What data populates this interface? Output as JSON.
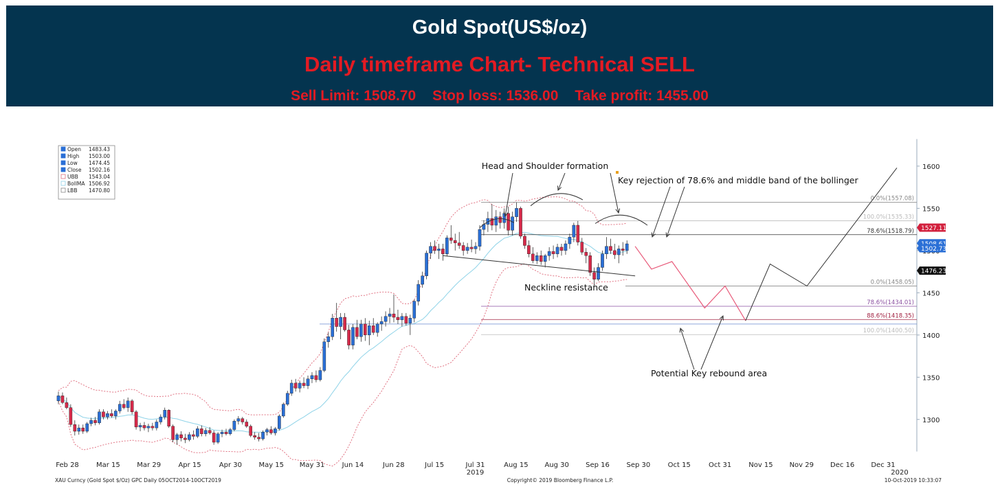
{
  "header": {
    "title": "Gold Spot(US$/oz)",
    "subtitle": "Daily timeframe Chart- Technical SELL",
    "sell_limit": "Sell Limit: 1508.70",
    "stop_loss": "Stop loss: 1536.00",
    "take_profit": "Take profit: 1455.00"
  },
  "colors": {
    "header_bg": "#04344f",
    "header_title": "#ffffff",
    "header_accent": "#e31b23",
    "bull_candle": "#2a6fd6",
    "bear_candle": "#d62a4a",
    "bollinger_band": "#e07080",
    "bollinger_mid": "#8fd3e8",
    "forecast_path": "#e85a7a"
  },
  "chart_data": {
    "type": "candlestick",
    "instrument": "XAU Curncy (Gold Spot  $/Oz) GPC  Daily 05OCT2014-10OCT2019",
    "copyright": "Copyright© 2019 Bloomberg Finance L.P.",
    "timestamp": "10-Oct-2019 10:33:07",
    "ylim": [
      1260,
      1630
    ],
    "y_ticks": [
      1300,
      1350,
      1400,
      1450,
      1500,
      1550,
      1600
    ],
    "x_ticks": [
      "Feb 28",
      "Mar 15",
      "Mar 29",
      "Apr 15",
      "Apr 30",
      "May 15",
      "May 31",
      "Jun 14",
      "Jun 28",
      "Jul 15",
      "Jul 31",
      "Aug 15",
      "Aug 30",
      "Sep 16",
      "Sep 30",
      "Oct 15",
      "Oct 31",
      "Nov 15",
      "Nov 29",
      "Dec 16",
      "Dec 31"
    ],
    "x_subticks": [
      {
        "tick": "Jul 31",
        "label": "2019"
      },
      {
        "tick": "Dec 31",
        "label": "2020"
      }
    ],
    "legend": [
      {
        "label": "Open",
        "value": "1483.43"
      },
      {
        "label": "High",
        "value": "1503.00"
      },
      {
        "label": "Low",
        "value": "1474.45"
      },
      {
        "label": "Close",
        "value": "1502.16"
      },
      {
        "label": "UBB",
        "value": "1543.04"
      },
      {
        "label": "BollMA",
        "value": "1506.92"
      },
      {
        "label": "LBB",
        "value": "1470.80"
      }
    ],
    "price_tags": [
      {
        "value": 1527.11,
        "label": "1527.11",
        "color": "#d21f3c"
      },
      {
        "value": 1508.61,
        "label": "1508.61",
        "color": "#2a6fd6"
      },
      {
        "value": 1502.73,
        "label": "1502.73",
        "color": "#2a6fd6"
      },
      {
        "value": 1476.23,
        "label": "1476.23",
        "color": "#111111"
      }
    ],
    "fib_levels": [
      {
        "value": 1557.08,
        "label": "0.0%(1557.08)",
        "color": "#888888"
      },
      {
        "value": 1535.33,
        "label": "100.0%(1535.33)",
        "color": "#bbbbbb"
      },
      {
        "value": 1518.79,
        "label": "78.6%(1518.79)",
        "color": "#333333"
      },
      {
        "value": 1458.05,
        "label": "0.0%(1458.05)",
        "color": "#888888"
      },
      {
        "value": 1434.01,
        "label": "78.6%(1434.01)",
        "color": "#8a4fa0"
      },
      {
        "value": 1418.35,
        "label": "88.6%(1418.35)",
        "color": "#a02040"
      },
      {
        "value": 1400.5,
        "label": "100.0%(1400.50)",
        "color": "#bbbbbb"
      }
    ],
    "support_line": 1413,
    "annotations": {
      "head_shoulder": "Head and Shoulder formation",
      "key_rejection": "Key rejection of 78.6% and middle band of the bollinger",
      "neckline": "Neckline resistance",
      "rebound": "Potential Key rebound area"
    },
    "candles": [
      {
        "o": 1322,
        "h": 1333,
        "l": 1318,
        "c": 1328
      },
      {
        "o": 1328,
        "h": 1332,
        "l": 1318,
        "c": 1320
      },
      {
        "o": 1320,
        "h": 1326,
        "l": 1312,
        "c": 1314
      },
      {
        "o": 1314,
        "h": 1318,
        "l": 1291,
        "c": 1294
      },
      {
        "o": 1294,
        "h": 1299,
        "l": 1281,
        "c": 1286
      },
      {
        "o": 1286,
        "h": 1294,
        "l": 1282,
        "c": 1290
      },
      {
        "o": 1290,
        "h": 1294,
        "l": 1283,
        "c": 1286
      },
      {
        "o": 1286,
        "h": 1297,
        "l": 1284,
        "c": 1295
      },
      {
        "o": 1295,
        "h": 1302,
        "l": 1292,
        "c": 1299
      },
      {
        "o": 1299,
        "h": 1303,
        "l": 1293,
        "c": 1296
      },
      {
        "o": 1296,
        "h": 1312,
        "l": 1294,
        "c": 1309
      },
      {
        "o": 1309,
        "h": 1312,
        "l": 1300,
        "c": 1303
      },
      {
        "o": 1303,
        "h": 1310,
        "l": 1300,
        "c": 1307
      },
      {
        "o": 1307,
        "h": 1312,
        "l": 1302,
        "c": 1304
      },
      {
        "o": 1304,
        "h": 1312,
        "l": 1300,
        "c": 1310
      },
      {
        "o": 1310,
        "h": 1322,
        "l": 1307,
        "c": 1318
      },
      {
        "o": 1318,
        "h": 1324,
        "l": 1312,
        "c": 1314
      },
      {
        "o": 1314,
        "h": 1326,
        "l": 1309,
        "c": 1322
      },
      {
        "o": 1322,
        "h": 1324,
        "l": 1306,
        "c": 1309
      },
      {
        "o": 1309,
        "h": 1311,
        "l": 1288,
        "c": 1291
      },
      {
        "o": 1291,
        "h": 1296,
        "l": 1286,
        "c": 1293
      },
      {
        "o": 1293,
        "h": 1297,
        "l": 1287,
        "c": 1290
      },
      {
        "o": 1290,
        "h": 1295,
        "l": 1285,
        "c": 1292
      },
      {
        "o": 1292,
        "h": 1296,
        "l": 1287,
        "c": 1290
      },
      {
        "o": 1290,
        "h": 1300,
        "l": 1287,
        "c": 1297
      },
      {
        "o": 1297,
        "h": 1306,
        "l": 1294,
        "c": 1303
      },
      {
        "o": 1303,
        "h": 1314,
        "l": 1300,
        "c": 1311
      },
      {
        "o": 1311,
        "h": 1312,
        "l": 1290,
        "c": 1292
      },
      {
        "o": 1292,
        "h": 1294,
        "l": 1273,
        "c": 1276
      },
      {
        "o": 1276,
        "h": 1284,
        "l": 1270,
        "c": 1282
      },
      {
        "o": 1282,
        "h": 1286,
        "l": 1274,
        "c": 1278
      },
      {
        "o": 1278,
        "h": 1283,
        "l": 1272,
        "c": 1276
      },
      {
        "o": 1276,
        "h": 1285,
        "l": 1274,
        "c": 1282
      },
      {
        "o": 1282,
        "h": 1287,
        "l": 1276,
        "c": 1280
      },
      {
        "o": 1280,
        "h": 1292,
        "l": 1278,
        "c": 1289
      },
      {
        "o": 1289,
        "h": 1293,
        "l": 1280,
        "c": 1283
      },
      {
        "o": 1283,
        "h": 1290,
        "l": 1280,
        "c": 1287
      },
      {
        "o": 1287,
        "h": 1291,
        "l": 1282,
        "c": 1284
      },
      {
        "o": 1284,
        "h": 1287,
        "l": 1270,
        "c": 1273
      },
      {
        "o": 1273,
        "h": 1285,
        "l": 1271,
        "c": 1283
      },
      {
        "o": 1283,
        "h": 1288,
        "l": 1279,
        "c": 1285
      },
      {
        "o": 1285,
        "h": 1289,
        "l": 1281,
        "c": 1283
      },
      {
        "o": 1283,
        "h": 1290,
        "l": 1281,
        "c": 1288
      },
      {
        "o": 1288,
        "h": 1300,
        "l": 1286,
        "c": 1298
      },
      {
        "o": 1298,
        "h": 1304,
        "l": 1294,
        "c": 1301
      },
      {
        "o": 1301,
        "h": 1303,
        "l": 1294,
        "c": 1297
      },
      {
        "o": 1297,
        "h": 1300,
        "l": 1290,
        "c": 1292
      },
      {
        "o": 1292,
        "h": 1294,
        "l": 1279,
        "c": 1281
      },
      {
        "o": 1281,
        "h": 1285,
        "l": 1276,
        "c": 1279
      },
      {
        "o": 1279,
        "h": 1284,
        "l": 1274,
        "c": 1277
      },
      {
        "o": 1277,
        "h": 1287,
        "l": 1275,
        "c": 1285
      },
      {
        "o": 1285,
        "h": 1290,
        "l": 1281,
        "c": 1288
      },
      {
        "o": 1288,
        "h": 1292,
        "l": 1282,
        "c": 1284
      },
      {
        "o": 1284,
        "h": 1291,
        "l": 1281,
        "c": 1289
      },
      {
        "o": 1289,
        "h": 1306,
        "l": 1287,
        "c": 1304
      },
      {
        "o": 1304,
        "h": 1320,
        "l": 1302,
        "c": 1318
      },
      {
        "o": 1318,
        "h": 1334,
        "l": 1316,
        "c": 1331
      },
      {
        "o": 1331,
        "h": 1347,
        "l": 1328,
        "c": 1343
      },
      {
        "o": 1343,
        "h": 1348,
        "l": 1333,
        "c": 1337
      },
      {
        "o": 1337,
        "h": 1346,
        "l": 1332,
        "c": 1343
      },
      {
        "o": 1343,
        "h": 1350,
        "l": 1337,
        "c": 1340
      },
      {
        "o": 1340,
        "h": 1352,
        "l": 1336,
        "c": 1348
      },
      {
        "o": 1348,
        "h": 1356,
        "l": 1343,
        "c": 1352
      },
      {
        "o": 1352,
        "h": 1358,
        "l": 1344,
        "c": 1347
      },
      {
        "o": 1347,
        "h": 1362,
        "l": 1345,
        "c": 1358
      },
      {
        "o": 1358,
        "h": 1396,
        "l": 1356,
        "c": 1392
      },
      {
        "o": 1392,
        "h": 1403,
        "l": 1385,
        "c": 1398
      },
      {
        "o": 1398,
        "h": 1425,
        "l": 1394,
        "c": 1420
      },
      {
        "o": 1420,
        "h": 1438,
        "l": 1404,
        "c": 1410
      },
      {
        "o": 1410,
        "h": 1426,
        "l": 1395,
        "c": 1421
      },
      {
        "o": 1421,
        "h": 1426,
        "l": 1404,
        "c": 1406
      },
      {
        "o": 1406,
        "h": 1412,
        "l": 1383,
        "c": 1388
      },
      {
        "o": 1388,
        "h": 1413,
        "l": 1383,
        "c": 1409
      },
      {
        "o": 1409,
        "h": 1418,
        "l": 1395,
        "c": 1398
      },
      {
        "o": 1398,
        "h": 1418,
        "l": 1392,
        "c": 1413
      },
      {
        "o": 1413,
        "h": 1420,
        "l": 1393,
        "c": 1400
      },
      {
        "o": 1400,
        "h": 1417,
        "l": 1388,
        "c": 1411
      },
      {
        "o": 1411,
        "h": 1420,
        "l": 1400,
        "c": 1403
      },
      {
        "o": 1403,
        "h": 1415,
        "l": 1398,
        "c": 1413
      },
      {
        "o": 1413,
        "h": 1422,
        "l": 1405,
        "c": 1416
      },
      {
        "o": 1416,
        "h": 1428,
        "l": 1410,
        "c": 1422
      },
      {
        "o": 1422,
        "h": 1432,
        "l": 1414,
        "c": 1425
      },
      {
        "o": 1425,
        "h": 1448,
        "l": 1415,
        "c": 1421
      },
      {
        "o": 1421,
        "h": 1430,
        "l": 1413,
        "c": 1418
      },
      {
        "o": 1418,
        "h": 1426,
        "l": 1410,
        "c": 1422
      },
      {
        "o": 1422,
        "h": 1426,
        "l": 1411,
        "c": 1414
      },
      {
        "o": 1414,
        "h": 1424,
        "l": 1400,
        "c": 1420
      },
      {
        "o": 1420,
        "h": 1442,
        "l": 1415,
        "c": 1440
      },
      {
        "o": 1440,
        "h": 1465,
        "l": 1435,
        "c": 1460
      },
      {
        "o": 1460,
        "h": 1475,
        "l": 1456,
        "c": 1470
      },
      {
        "o": 1470,
        "h": 1500,
        "l": 1466,
        "c": 1497
      },
      {
        "o": 1497,
        "h": 1510,
        "l": 1490,
        "c": 1505
      },
      {
        "o": 1505,
        "h": 1512,
        "l": 1496,
        "c": 1500
      },
      {
        "o": 1500,
        "h": 1508,
        "l": 1490,
        "c": 1502
      },
      {
        "o": 1502,
        "h": 1508,
        "l": 1488,
        "c": 1496
      },
      {
        "o": 1496,
        "h": 1518,
        "l": 1493,
        "c": 1515
      },
      {
        "o": 1515,
        "h": 1530,
        "l": 1508,
        "c": 1512
      },
      {
        "o": 1512,
        "h": 1520,
        "l": 1500,
        "c": 1509
      },
      {
        "o": 1509,
        "h": 1522,
        "l": 1502,
        "c": 1506
      },
      {
        "o": 1506,
        "h": 1510,
        "l": 1494,
        "c": 1500
      },
      {
        "o": 1500,
        "h": 1509,
        "l": 1496,
        "c": 1504
      },
      {
        "o": 1504,
        "h": 1513,
        "l": 1498,
        "c": 1502
      },
      {
        "o": 1502,
        "h": 1510,
        "l": 1496,
        "c": 1505
      },
      {
        "o": 1505,
        "h": 1530,
        "l": 1500,
        "c": 1525
      },
      {
        "o": 1525,
        "h": 1536,
        "l": 1518,
        "c": 1531
      },
      {
        "o": 1531,
        "h": 1546,
        "l": 1522,
        "c": 1538
      },
      {
        "o": 1538,
        "h": 1555,
        "l": 1524,
        "c": 1530
      },
      {
        "o": 1530,
        "h": 1548,
        "l": 1522,
        "c": 1540
      },
      {
        "o": 1540,
        "h": 1546,
        "l": 1526,
        "c": 1533
      },
      {
        "o": 1533,
        "h": 1550,
        "l": 1526,
        "c": 1544
      },
      {
        "o": 1544,
        "h": 1552,
        "l": 1518,
        "c": 1524
      },
      {
        "o": 1524,
        "h": 1546,
        "l": 1518,
        "c": 1540
      },
      {
        "o": 1540,
        "h": 1557,
        "l": 1534,
        "c": 1550
      },
      {
        "o": 1550,
        "h": 1552,
        "l": 1514,
        "c": 1517
      },
      {
        "o": 1517,
        "h": 1520,
        "l": 1502,
        "c": 1506
      },
      {
        "o": 1506,
        "h": 1512,
        "l": 1492,
        "c": 1496
      },
      {
        "o": 1496,
        "h": 1504,
        "l": 1485,
        "c": 1488
      },
      {
        "o": 1488,
        "h": 1498,
        "l": 1484,
        "c": 1494
      },
      {
        "o": 1494,
        "h": 1500,
        "l": 1483,
        "c": 1487
      },
      {
        "o": 1487,
        "h": 1496,
        "l": 1480,
        "c": 1494
      },
      {
        "o": 1494,
        "h": 1504,
        "l": 1488,
        "c": 1499
      },
      {
        "o": 1499,
        "h": 1506,
        "l": 1490,
        "c": 1496
      },
      {
        "o": 1496,
        "h": 1508,
        "l": 1492,
        "c": 1504
      },
      {
        "o": 1504,
        "h": 1508,
        "l": 1494,
        "c": 1500
      },
      {
        "o": 1500,
        "h": 1512,
        "l": 1495,
        "c": 1508
      },
      {
        "o": 1508,
        "h": 1520,
        "l": 1502,
        "c": 1516
      },
      {
        "o": 1516,
        "h": 1533,
        "l": 1510,
        "c": 1530
      },
      {
        "o": 1530,
        "h": 1535,
        "l": 1506,
        "c": 1510
      },
      {
        "o": 1510,
        "h": 1515,
        "l": 1495,
        "c": 1498
      },
      {
        "o": 1498,
        "h": 1503,
        "l": 1485,
        "c": 1494
      },
      {
        "o": 1494,
        "h": 1498,
        "l": 1470,
        "c": 1474
      },
      {
        "o": 1474,
        "h": 1480,
        "l": 1458,
        "c": 1466
      },
      {
        "o": 1466,
        "h": 1485,
        "l": 1464,
        "c": 1480
      },
      {
        "o": 1480,
        "h": 1500,
        "l": 1476,
        "c": 1496
      },
      {
        "o": 1496,
        "h": 1516,
        "l": 1490,
        "c": 1505
      },
      {
        "o": 1505,
        "h": 1514,
        "l": 1496,
        "c": 1500
      },
      {
        "o": 1500,
        "h": 1508,
        "l": 1490,
        "c": 1495
      },
      {
        "o": 1495,
        "h": 1506,
        "l": 1485,
        "c": 1502
      },
      {
        "o": 1502,
        "h": 1510,
        "l": 1494,
        "c": 1500
      },
      {
        "o": 1500,
        "h": 1512,
        "l": 1496,
        "c": 1508
      }
    ],
    "forecast": [
      {
        "date_index": 141,
        "value": 1505
      },
      {
        "date_index": 145,
        "value": 1478
      },
      {
        "date_index": 150,
        "value": 1487
      },
      {
        "date_index": 158,
        "value": 1432
      },
      {
        "date_index": 163,
        "value": 1458
      },
      {
        "date_index": 168,
        "value": 1417
      }
    ],
    "projection": [
      {
        "date_index": 168,
        "value": 1417
      },
      {
        "date_index": 174,
        "value": 1484
      },
      {
        "date_index": 183,
        "value": 1458
      },
      {
        "date_index": 205,
        "value": 1598
      }
    ]
  }
}
